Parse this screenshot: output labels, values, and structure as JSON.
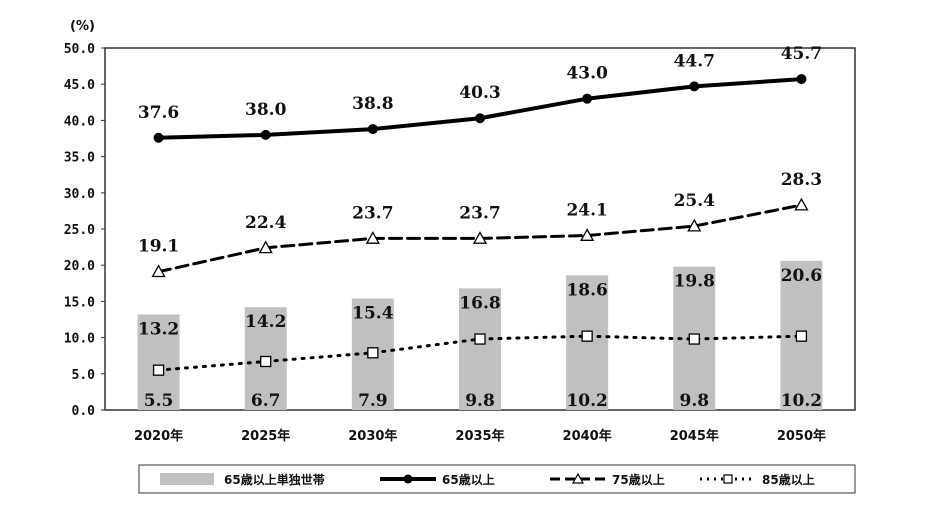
{
  "chart_data": {
    "type": "bar+line",
    "unit_label": "(%)",
    "categories": [
      "2020年",
      "2025年",
      "2030年",
      "2035年",
      "2040年",
      "2045年",
      "2050年"
    ],
    "ylim": [
      0,
      50
    ],
    "yticks": [
      "0.0",
      "5.0",
      "10.0",
      "15.0",
      "20.0",
      "25.0",
      "30.0",
      "35.0",
      "40.0",
      "45.0",
      "50.0"
    ],
    "grid": false,
    "legend_position": "bottom",
    "series": [
      {
        "name": "65歳以上単独世帯",
        "type": "bar",
        "color": "#c0c0c0",
        "values": [
          13.2,
          14.2,
          15.4,
          16.8,
          18.6,
          19.8,
          20.6
        ],
        "labels": [
          "13.2",
          "14.2",
          "15.4",
          "16.8",
          "18.6",
          "19.8",
          "20.6"
        ]
      },
      {
        "name": "65歳以上",
        "type": "line",
        "style": "solid",
        "marker": "filled-circle",
        "color": "#000000",
        "values": [
          37.6,
          38.0,
          38.8,
          40.3,
          43.0,
          44.7,
          45.7
        ],
        "labels": [
          "37.6",
          "38.0",
          "38.8",
          "40.3",
          "43.0",
          "44.7",
          "45.7"
        ]
      },
      {
        "name": "75歳以上",
        "type": "line",
        "style": "dashed",
        "marker": "open-triangle",
        "color": "#000000",
        "values": [
          19.1,
          22.4,
          23.7,
          23.7,
          24.1,
          25.4,
          28.3
        ],
        "labels": [
          "19.1",
          "22.4",
          "23.7",
          "23.7",
          "24.1",
          "25.4",
          "28.3"
        ]
      },
      {
        "name": "85歳以上",
        "type": "line",
        "style": "dotted",
        "marker": "open-square",
        "color": "#000000",
        "values": [
          5.5,
          6.7,
          7.9,
          9.8,
          10.2,
          9.8,
          10.2
        ],
        "labels": [
          "5.5",
          "6.7",
          "7.9",
          "9.8",
          "10.2",
          "9.8",
          "10.2"
        ]
      }
    ]
  }
}
